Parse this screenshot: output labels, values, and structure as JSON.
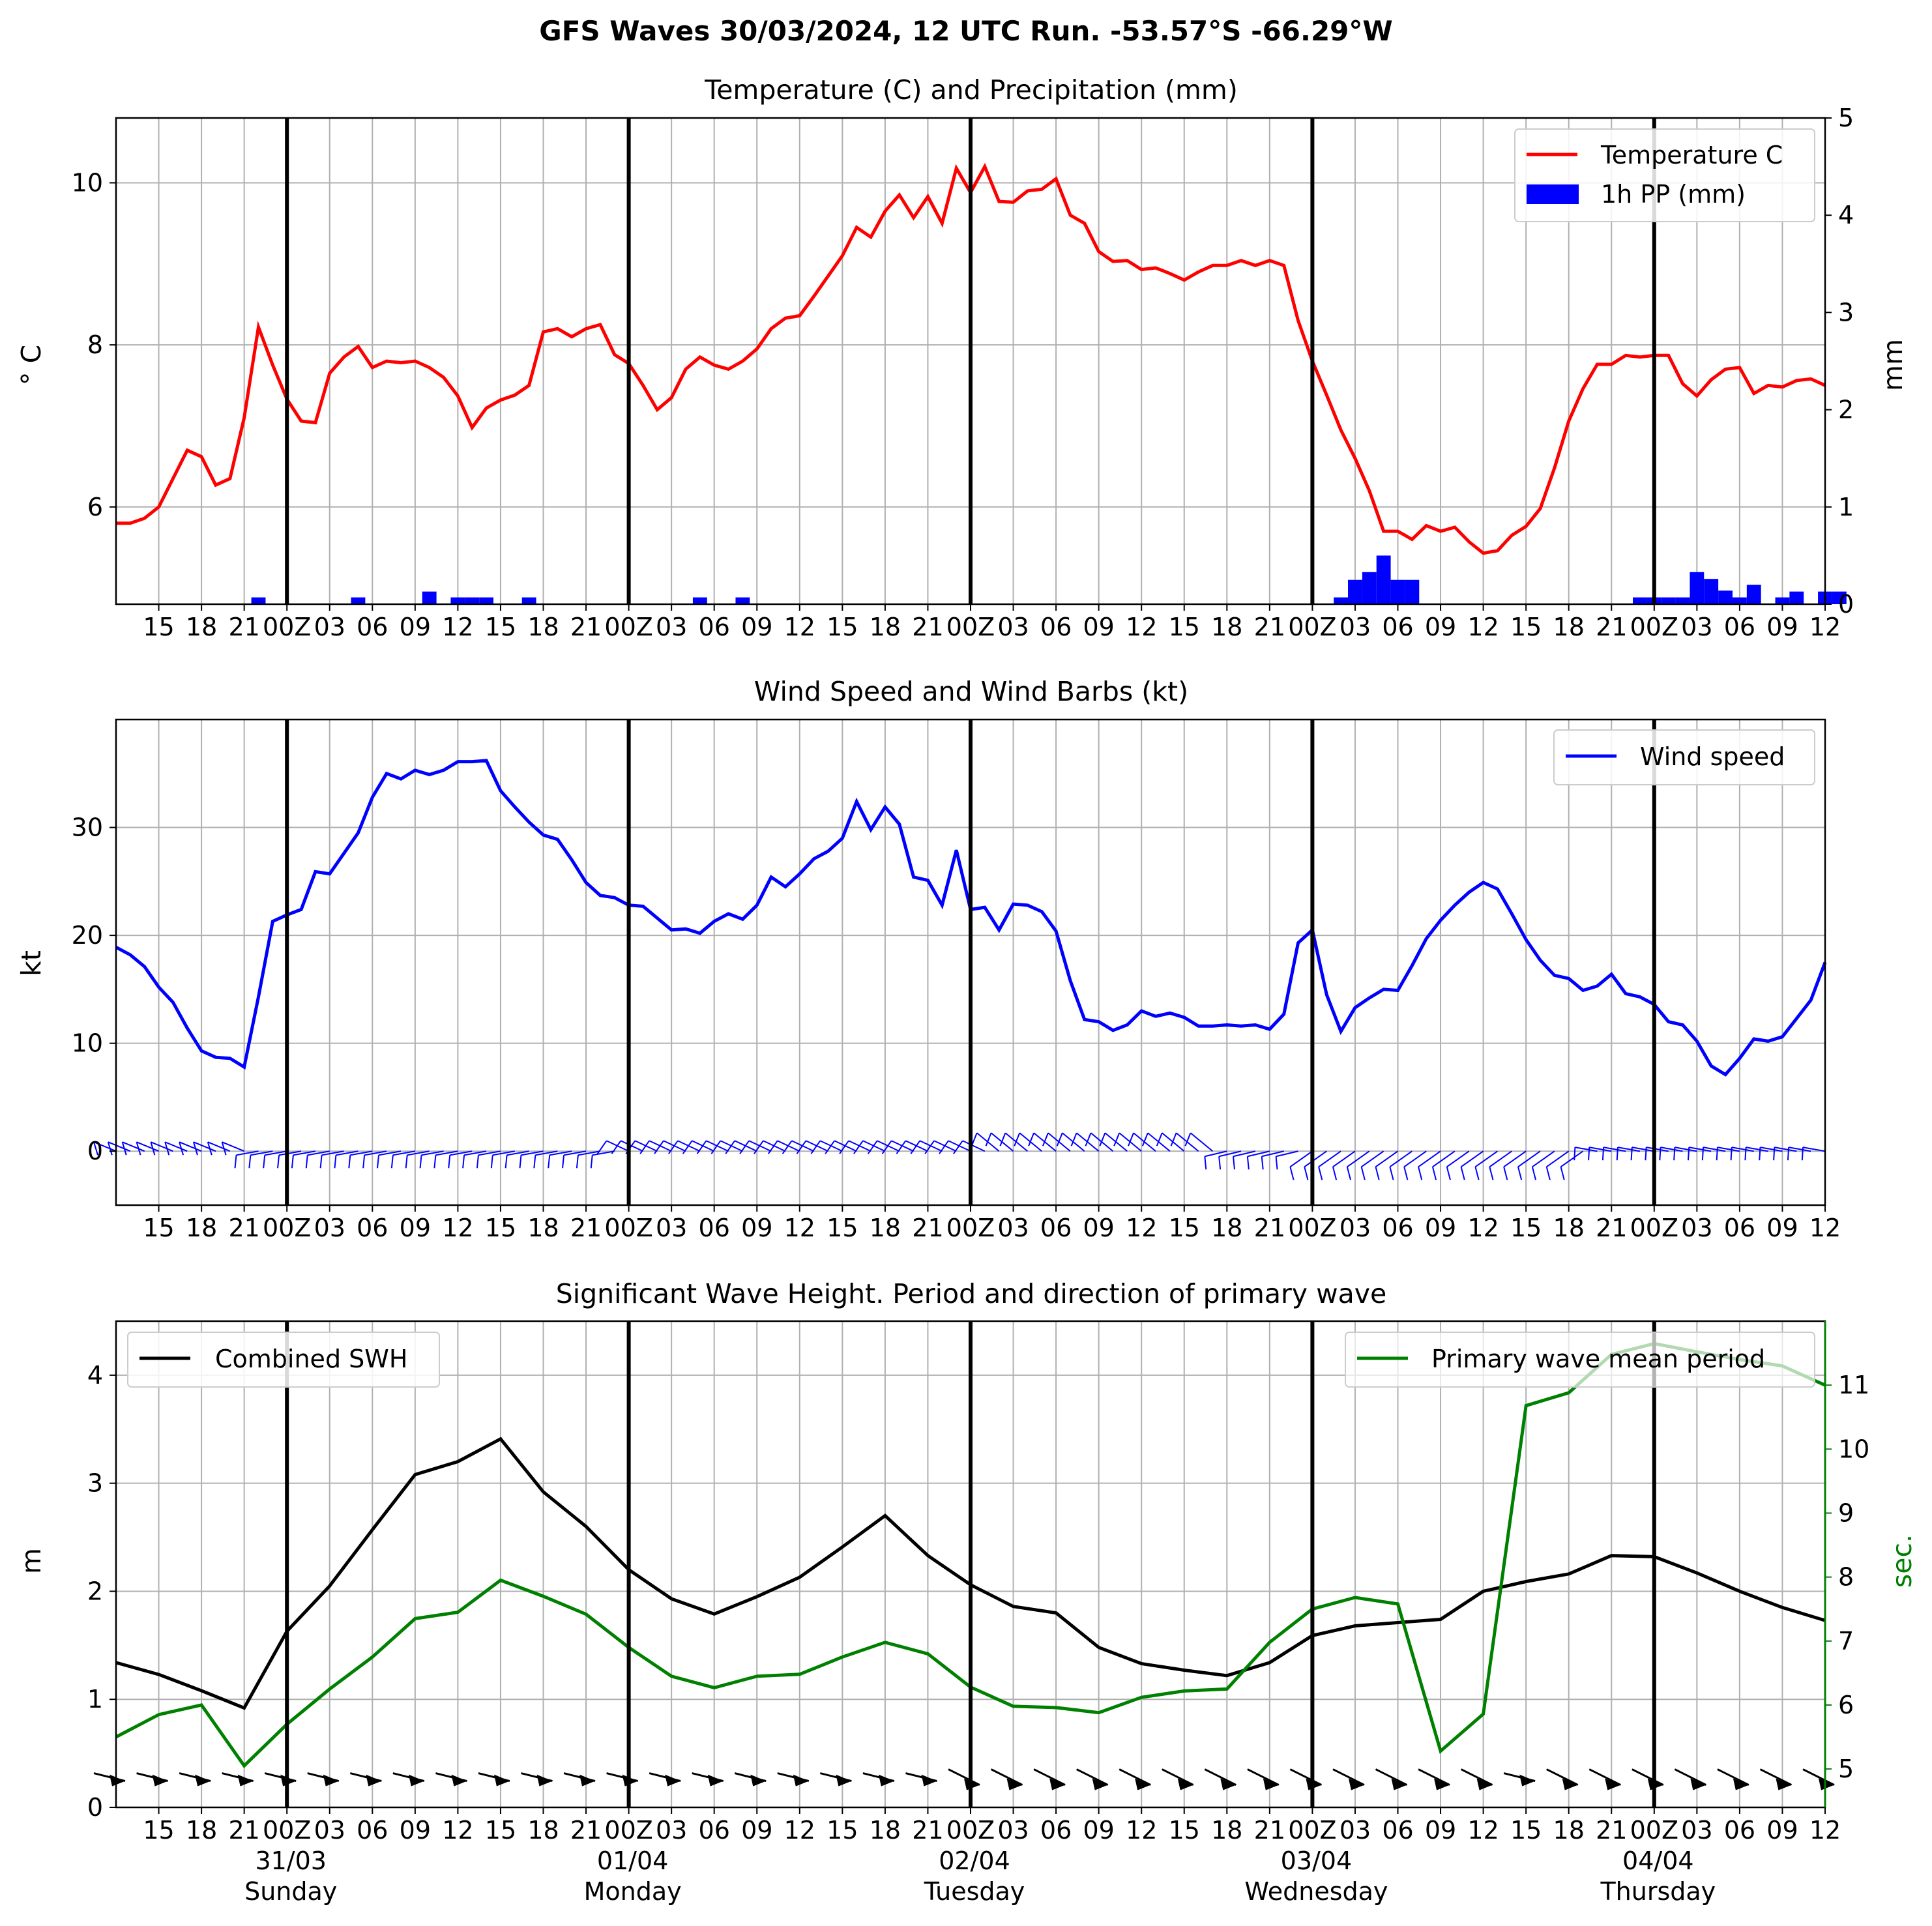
{
  "suptitle": "GFS Waves 30/03/2024, 12 UTC Run. -53.57°S -66.29°W",
  "time_ticks": [
    "15",
    "18",
    "21",
    "00Z",
    "03",
    "06",
    "09",
    "12",
    "15",
    "18",
    "21",
    "00Z",
    "03",
    "06",
    "09",
    "12",
    "15",
    "18",
    "21",
    "00Z",
    "03",
    "06",
    "09",
    "12",
    "15",
    "18",
    "21",
    "00Z",
    "03",
    "06",
    "09",
    "12",
    "15",
    "18",
    "21",
    "00Z",
    "03",
    "06",
    "09",
    "12"
  ],
  "day_labels": [
    {
      "date": "31/03",
      "day": "Sunday"
    },
    {
      "date": "01/04",
      "day": "Monday"
    },
    {
      "date": "02/04",
      "day": "Tuesday"
    },
    {
      "date": "03/04",
      "day": "Wednesday"
    },
    {
      "date": "04/04",
      "day": "Thursday"
    }
  ],
  "colors": {
    "temperature": "#ff0000",
    "precip": "#0000ff",
    "wind": "#0000ff",
    "swh": "#000000",
    "period": "#008000",
    "grid": "#b0b0b0"
  },
  "chart_data": [
    {
      "type": "line",
      "title": "Temperature (C) and Precipitation (mm)",
      "ylabel": "$^\\circ$C",
      "ylabel_display": "° C",
      "y2label": "mm",
      "x_units": "hours since 30/03/2024 12 UTC",
      "ylim": [
        4.8,
        10.8
      ],
      "y2lim": [
        0,
        5
      ],
      "yticks": [
        6,
        8,
        10
      ],
      "y2ticks": [
        0,
        1,
        2,
        3,
        4,
        5
      ],
      "legend": [
        "Temperature C",
        "1h PP (mm)"
      ],
      "legend_position": "top-right",
      "grid": true,
      "series": [
        {
          "name": "Temperature C",
          "kind": "line",
          "x": [
            0,
            1,
            2,
            3,
            4,
            5,
            6,
            7,
            8,
            9,
            10,
            11,
            12,
            13,
            14,
            15,
            16,
            17,
            18,
            19,
            20,
            21,
            22,
            23,
            24,
            25,
            26,
            27,
            28,
            29,
            30,
            31,
            32,
            33,
            34,
            35,
            36,
            37,
            38,
            39,
            40,
            41,
            42,
            43,
            44,
            45,
            46,
            47,
            48,
            49,
            50,
            51,
            52,
            53,
            54,
            55,
            56,
            57,
            58,
            59,
            60,
            61,
            62,
            63,
            64,
            65,
            66,
            67,
            68,
            69,
            70,
            71,
            72,
            73,
            74,
            75,
            76,
            77,
            78,
            79,
            80,
            81,
            82,
            83,
            84,
            85,
            86,
            87,
            88,
            89,
            90,
            91,
            92,
            93,
            94,
            95,
            96,
            97,
            98,
            99,
            100,
            101,
            102,
            103,
            104,
            105,
            106,
            107,
            108,
            109,
            110,
            111,
            112,
            113,
            114,
            115,
            116,
            117,
            118,
            119,
            120
          ],
          "values": [
            5.8,
            5.8,
            5.86,
            6.0,
            6.35,
            6.7,
            6.62,
            6.27,
            6.35,
            7.1,
            8.22,
            7.75,
            7.33,
            7.06,
            7.04,
            7.65,
            7.85,
            7.98,
            7.72,
            7.8,
            7.78,
            7.8,
            7.72,
            7.6,
            7.37,
            6.98,
            7.22,
            7.32,
            7.38,
            7.5,
            8.16,
            8.2,
            8.1,
            8.2,
            8.25,
            7.88,
            7.77,
            7.5,
            7.2,
            7.35,
            7.7,
            7.85,
            7.75,
            7.7,
            7.8,
            7.95,
            8.2,
            8.33,
            8.36,
            8.6,
            8.85,
            9.1,
            9.45,
            9.33,
            9.65,
            9.85,
            9.57,
            9.83,
            9.5,
            10.18,
            9.88,
            10.2,
            9.77,
            9.76,
            9.9,
            9.92,
            10.05,
            9.6,
            9.5,
            9.15,
            9.03,
            9.04,
            8.93,
            8.95,
            8.88,
            8.8,
            8.9,
            8.98,
            8.98,
            9.04,
            8.98,
            9.04,
            8.98,
            8.3,
            7.8,
            7.38,
            6.95,
            6.6,
            6.2,
            5.7,
            5.7,
            5.6,
            5.77,
            5.7,
            5.75,
            5.57,
            5.43,
            5.46,
            5.65,
            5.76,
            5.98,
            6.48,
            7.06,
            7.46,
            7.76,
            7.76,
            7.87,
            7.85,
            7.87,
            7.87,
            7.52,
            7.37,
            7.57,
            7.7,
            7.72,
            7.4,
            7.5,
            7.48,
            7.56,
            7.58,
            7.5
          ]
        },
        {
          "name": "1h PP (mm)",
          "kind": "bar",
          "x": [
            10,
            17,
            22,
            24,
            25,
            26,
            29,
            41,
            44,
            86,
            87,
            88,
            89,
            90,
            91,
            107,
            108,
            109,
            110,
            111,
            112,
            113,
            114,
            115,
            117,
            118,
            120,
            121
          ],
          "values": [
            0.07,
            0.07,
            0.13,
            0.07,
            0.07,
            0.07,
            0.07,
            0.07,
            0.07,
            0.07,
            0.25,
            0.33,
            0.5,
            0.25,
            0.25,
            0.07,
            0.07,
            0.07,
            0.07,
            0.33,
            0.26,
            0.14,
            0.07,
            0.2,
            0.07,
            0.13,
            0.13,
            0.13
          ]
        }
      ]
    },
    {
      "type": "line",
      "title": "Wind Speed and Wind Barbs (kt)",
      "ylabel": "kt",
      "ylim": [
        -5,
        40
      ],
      "yticks": [
        0,
        10,
        20,
        30
      ],
      "legend": [
        "Wind speed"
      ],
      "legend_position": "top-right",
      "grid": true,
      "series": [
        {
          "name": "Wind speed",
          "kind": "line",
          "x": [
            0,
            1,
            2,
            3,
            4,
            5,
            6,
            7,
            8,
            9,
            10,
            11,
            12,
            13,
            14,
            15,
            16,
            17,
            18,
            19,
            20,
            21,
            22,
            23,
            24,
            25,
            26,
            27,
            28,
            29,
            30,
            31,
            32,
            33,
            34,
            35,
            36,
            37,
            38,
            39,
            40,
            41,
            42,
            43,
            44,
            45,
            46,
            47,
            48,
            49,
            50,
            51,
            52,
            53,
            54,
            55,
            56,
            57,
            58,
            59,
            60,
            61,
            62,
            63,
            64,
            65,
            66,
            67,
            68,
            69,
            70,
            71,
            72,
            73,
            74,
            75,
            76,
            77,
            78,
            79,
            80,
            81,
            82,
            83,
            84,
            85,
            86,
            87,
            88,
            89,
            90,
            91,
            92,
            93,
            94,
            95,
            96,
            97,
            98,
            99,
            100,
            101,
            102,
            103,
            104,
            105,
            106,
            107,
            108,
            109,
            110,
            111,
            112,
            113,
            114,
            115,
            116,
            117,
            118,
            119,
            120
          ],
          "values": [
            18.9,
            18.2,
            17.1,
            15.2,
            13.8,
            11.4,
            9.3,
            8.7,
            8.6,
            7.8,
            14.3,
            21.3,
            21.9,
            22.4,
            25.9,
            25.7,
            27.6,
            29.5,
            32.8,
            35.0,
            34.5,
            35.3,
            34.9,
            35.3,
            36.1,
            36.1,
            36.2,
            33.4,
            31.9,
            30.5,
            29.3,
            28.9,
            27.0,
            24.9,
            23.7,
            23.5,
            22.8,
            22.7,
            21.6,
            20.5,
            20.6,
            20.2,
            21.3,
            22.0,
            21.5,
            22.8,
            25.4,
            24.5,
            25.7,
            27.1,
            27.8,
            29.0,
            32.4,
            29.8,
            31.9,
            30.3,
            25.4,
            25.1,
            22.8,
            27.9,
            22.4,
            22.6,
            20.5,
            22.9,
            22.8,
            22.2,
            20.4,
            15.8,
            12.2,
            12.0,
            11.2,
            11.7,
            13.0,
            12.5,
            12.8,
            12.4,
            11.6,
            11.6,
            11.7,
            11.6,
            11.7,
            11.3,
            12.7,
            19.3,
            20.5,
            14.5,
            11.1,
            13.3,
            14.2,
            15.0,
            14.9,
            17.2,
            19.7,
            21.4,
            22.8,
            24.0,
            24.9,
            24.3,
            22.0,
            19.6,
            17.7,
            16.3,
            16.0,
            14.9,
            15.3,
            16.4,
            14.6,
            14.3,
            13.6,
            12.0,
            11.7,
            10.2,
            7.9,
            7.1,
            8.6,
            10.4,
            10.2,
            10.6,
            12.3,
            14.0,
            17.5
          ]
        }
      ],
      "wind_barbs": {
        "x_step_hours": 1,
        "note": "one barb per hour along y=0"
      }
    },
    {
      "type": "line",
      "title": "Significant Wave Height. Period and direction of primary wave",
      "ylabel": "m",
      "y2label": "sec.",
      "ylim": [
        0,
        4.5
      ],
      "y2lim": [
        4.4,
        12.0
      ],
      "yticks": [
        0,
        1,
        2,
        3,
        4
      ],
      "y2ticks": [
        5,
        6,
        7,
        8,
        9,
        10,
        11
      ],
      "legend_left": [
        "Combined SWH"
      ],
      "legend_right": [
        "Primary wave mean period"
      ],
      "grid": true,
      "series": [
        {
          "name": "Combined SWH",
          "kind": "line",
          "axis": "left",
          "x": [
            0,
            3,
            6,
            9,
            12,
            15,
            18,
            21,
            24,
            27,
            30,
            33,
            36,
            39,
            42,
            45,
            48,
            51,
            54,
            57,
            60,
            63,
            66,
            69,
            72,
            75,
            78,
            81,
            84,
            87,
            90,
            93,
            96,
            99,
            102,
            105,
            108,
            111,
            114,
            117,
            120
          ],
          "values": [
            1.34,
            1.23,
            1.08,
            0.92,
            1.63,
            2.05,
            2.57,
            3.08,
            3.2,
            3.41,
            2.92,
            2.6,
            2.2,
            1.93,
            1.79,
            1.95,
            2.13,
            2.41,
            2.7,
            2.33,
            2.06,
            1.86,
            1.8,
            1.48,
            1.33,
            1.27,
            1.22,
            1.34,
            1.59,
            1.68,
            1.71,
            1.74,
            2.0,
            2.09,
            2.16,
            2.33,
            2.32,
            2.17,
            2.0,
            1.85,
            1.73
          ]
        },
        {
          "name": "Primary wave mean period",
          "kind": "line",
          "axis": "right",
          "x": [
            0,
            3,
            6,
            9,
            12,
            15,
            18,
            21,
            24,
            27,
            30,
            33,
            36,
            39,
            42,
            45,
            48,
            51,
            54,
            57,
            60,
            63,
            66,
            69,
            72,
            75,
            78,
            81,
            84,
            87,
            90,
            93,
            96,
            99,
            102,
            105,
            108,
            111,
            114,
            117,
            120
          ],
          "values": [
            5.5,
            5.85,
            6.0,
            5.05,
            5.7,
            6.25,
            6.75,
            7.35,
            7.45,
            7.95,
            7.7,
            7.42,
            6.9,
            6.45,
            6.27,
            6.45,
            6.48,
            6.75,
            6.98,
            6.8,
            6.28,
            5.98,
            5.96,
            5.88,
            6.12,
            6.22,
            6.25,
            6.98,
            7.5,
            7.68,
            7.58,
            5.28,
            5.86,
            10.68,
            10.88,
            11.48,
            11.65,
            11.52,
            11.4,
            11.3,
            11.0
          ]
        }
      ],
      "wave_direction_arrows": {
        "x_step_hours": 3,
        "note": "direction arrows near bottom"
      }
    }
  ]
}
